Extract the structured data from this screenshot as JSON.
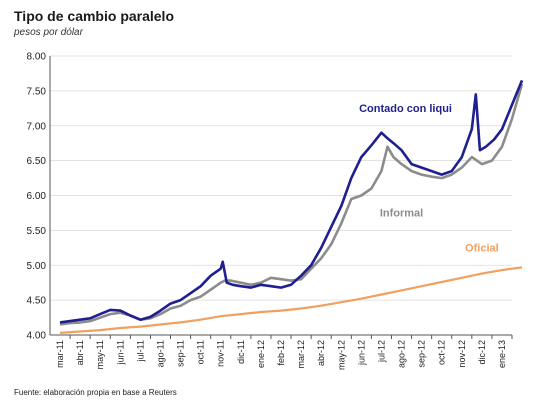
{
  "title": "Tipo de cambio paralelo",
  "subtitle": "pesos por dólar",
  "source": "Fuente: elaboración propia en base a Reuters",
  "colors": {
    "ccl": "#1f1f8f",
    "informal": "#8c8c8c",
    "oficial": "#f0a060"
  },
  "chart_data": {
    "type": "line",
    "ylim": [
      4.0,
      8.0
    ],
    "yticks": [
      "4.00",
      "4.50",
      "5.00",
      "5.50",
      "6.00",
      "6.50",
      "7.00",
      "7.50",
      "8.00"
    ],
    "xtick_labels": [
      "mar-11",
      "abr-11",
      "may-11",
      "jun-11",
      "jul-11",
      "ago-11",
      "sep-11",
      "oct-11",
      "nov-11",
      "dic-11",
      "ene-12",
      "feb-12",
      "mar-12",
      "abr-12",
      "may-12",
      "jun-12",
      "jul-12",
      "ago-12",
      "sep-12",
      "oct-12",
      "nov-12",
      "dic-12",
      "ene-13"
    ],
    "series": [
      {
        "name": "Contado con liqui",
        "key": "ccl",
        "points": [
          [
            0,
            4.18
          ],
          [
            0.5,
            4.2
          ],
          [
            1,
            4.22
          ],
          [
            1.5,
            4.24
          ],
          [
            2,
            4.3
          ],
          [
            2.5,
            4.36
          ],
          [
            3,
            4.35
          ],
          [
            3.5,
            4.28
          ],
          [
            4,
            4.22
          ],
          [
            4.5,
            4.26
          ],
          [
            5,
            4.35
          ],
          [
            5.5,
            4.45
          ],
          [
            6,
            4.5
          ],
          [
            6.5,
            4.6
          ],
          [
            7,
            4.7
          ],
          [
            7.5,
            4.85
          ],
          [
            8,
            4.95
          ],
          [
            8.1,
            5.05
          ],
          [
            8.3,
            4.75
          ],
          [
            8.6,
            4.72
          ],
          [
            9,
            4.7
          ],
          [
            9.5,
            4.68
          ],
          [
            10,
            4.72
          ],
          [
            10.5,
            4.7
          ],
          [
            11,
            4.68
          ],
          [
            11.5,
            4.72
          ],
          [
            12,
            4.85
          ],
          [
            12.5,
            5.0
          ],
          [
            13,
            5.25
          ],
          [
            13.5,
            5.55
          ],
          [
            14,
            5.85
          ],
          [
            14.5,
            6.25
          ],
          [
            15,
            6.55
          ],
          [
            15.5,
            6.72
          ],
          [
            16,
            6.9
          ],
          [
            16.3,
            6.82
          ],
          [
            16.6,
            6.75
          ],
          [
            17,
            6.65
          ],
          [
            17.5,
            6.45
          ],
          [
            18,
            6.4
          ],
          [
            18.5,
            6.35
          ],
          [
            19,
            6.3
          ],
          [
            19.5,
            6.35
          ],
          [
            20,
            6.55
          ],
          [
            20.5,
            6.95
          ],
          [
            20.7,
            7.45
          ],
          [
            20.9,
            6.65
          ],
          [
            21.2,
            6.7
          ],
          [
            21.6,
            6.8
          ],
          [
            22,
            6.95
          ],
          [
            22.5,
            7.3
          ],
          [
            23,
            7.65
          ]
        ]
      },
      {
        "name": "Informal",
        "key": "informal",
        "points": [
          [
            0,
            4.15
          ],
          [
            0.5,
            4.17
          ],
          [
            1,
            4.18
          ],
          [
            1.5,
            4.2
          ],
          [
            2,
            4.25
          ],
          [
            2.5,
            4.3
          ],
          [
            3,
            4.32
          ],
          [
            3.5,
            4.28
          ],
          [
            4,
            4.22
          ],
          [
            4.5,
            4.24
          ],
          [
            5,
            4.3
          ],
          [
            5.5,
            4.38
          ],
          [
            6,
            4.42
          ],
          [
            6.5,
            4.5
          ],
          [
            7,
            4.55
          ],
          [
            7.5,
            4.65
          ],
          [
            8,
            4.75
          ],
          [
            8.2,
            4.78
          ],
          [
            8.5,
            4.78
          ],
          [
            9,
            4.75
          ],
          [
            9.5,
            4.72
          ],
          [
            10,
            4.75
          ],
          [
            10.5,
            4.82
          ],
          [
            11,
            4.8
          ],
          [
            11.5,
            4.78
          ],
          [
            12,
            4.8
          ],
          [
            12.5,
            4.95
          ],
          [
            13,
            5.1
          ],
          [
            13.5,
            5.3
          ],
          [
            14,
            5.6
          ],
          [
            14.5,
            5.95
          ],
          [
            15,
            6.0
          ],
          [
            15.5,
            6.1
          ],
          [
            16,
            6.35
          ],
          [
            16.3,
            6.7
          ],
          [
            16.6,
            6.55
          ],
          [
            17,
            6.45
          ],
          [
            17.5,
            6.35
          ],
          [
            18,
            6.3
          ],
          [
            18.5,
            6.27
          ],
          [
            19,
            6.25
          ],
          [
            19.5,
            6.3
          ],
          [
            20,
            6.4
          ],
          [
            20.5,
            6.55
          ],
          [
            21,
            6.45
          ],
          [
            21.5,
            6.5
          ],
          [
            22,
            6.7
          ],
          [
            22.5,
            7.1
          ],
          [
            23,
            7.6
          ]
        ]
      },
      {
        "name": "Oficial",
        "key": "oficial",
        "points": [
          [
            0,
            4.03
          ],
          [
            1,
            4.05
          ],
          [
            2,
            4.07
          ],
          [
            3,
            4.1
          ],
          [
            4,
            4.12
          ],
          [
            5,
            4.15
          ],
          [
            6,
            4.18
          ],
          [
            7,
            4.22
          ],
          [
            8,
            4.27
          ],
          [
            9,
            4.3
          ],
          [
            10,
            4.33
          ],
          [
            11,
            4.35
          ],
          [
            12,
            4.38
          ],
          [
            13,
            4.42
          ],
          [
            14,
            4.47
          ],
          [
            15,
            4.52
          ],
          [
            16,
            4.58
          ],
          [
            17,
            4.64
          ],
          [
            18,
            4.7
          ],
          [
            19,
            4.76
          ],
          [
            20,
            4.82
          ],
          [
            21,
            4.88
          ],
          [
            22,
            4.93
          ],
          [
            23,
            4.97
          ]
        ]
      }
    ]
  }
}
